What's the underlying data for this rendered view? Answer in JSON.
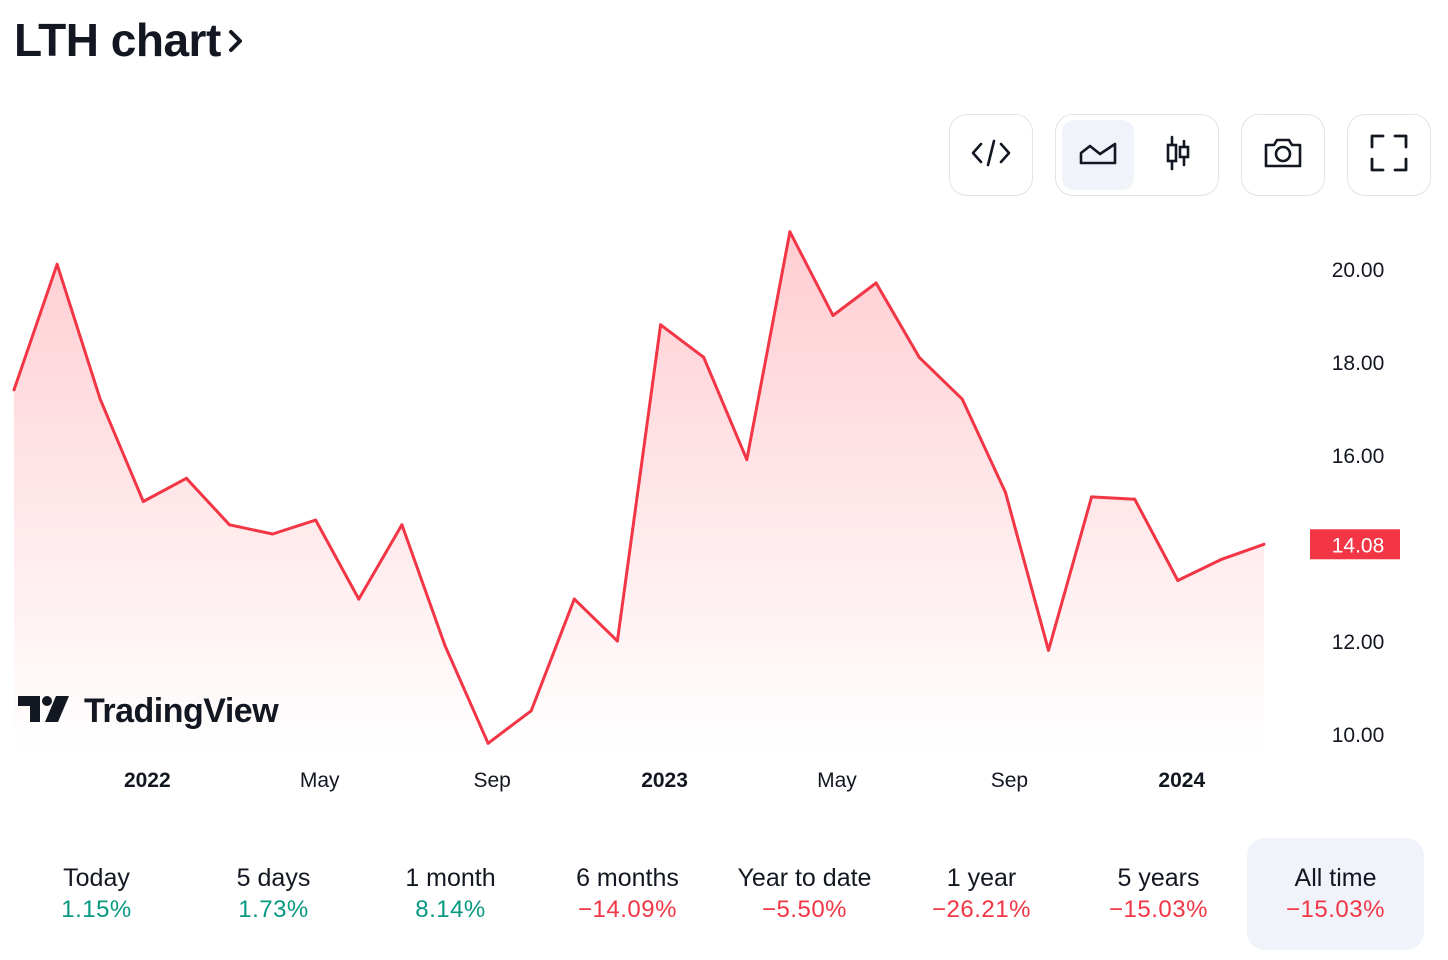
{
  "header": {
    "title": "LTH chart"
  },
  "toolbar": {
    "buttons": [
      {
        "name": "embed",
        "icon": "code-icon"
      },
      {
        "name": "area-style",
        "icon": "area-chart-icon",
        "active": true
      },
      {
        "name": "candle-style",
        "icon": "candlestick-icon"
      },
      {
        "name": "snapshot",
        "icon": "camera-icon"
      },
      {
        "name": "fullscreen",
        "icon": "fullscreen-icon"
      }
    ]
  },
  "brand": {
    "name": "TradingView"
  },
  "colors": {
    "line": "#f23645",
    "fill_top": "#ffcdd2",
    "fill_bottom": "#ffffff",
    "positive": "#089981",
    "negative": "#f23645"
  },
  "chart_data": {
    "type": "area",
    "series": [
      {
        "values": [
          17.4,
          20.1,
          17.2,
          15.0,
          15.5,
          14.5,
          14.3,
          14.6,
          12.9,
          14.5,
          11.9,
          9.8,
          10.5,
          12.9,
          12.0,
          18.8,
          18.1,
          15.9,
          20.8,
          19.0,
          19.7,
          18.1,
          17.2,
          15.2,
          11.8,
          15.1,
          15.05,
          13.3,
          13.75,
          14.08
        ]
      }
    ],
    "x_ticks": [
      {
        "label": "2022",
        "index": 3,
        "bold": true
      },
      {
        "label": "May",
        "index": 7,
        "bold": false
      },
      {
        "label": "Sep",
        "index": 11,
        "bold": false
      },
      {
        "label": "2023",
        "index": 15,
        "bold": true
      },
      {
        "label": "May",
        "index": 19,
        "bold": false
      },
      {
        "label": "Sep",
        "index": 23,
        "bold": false
      },
      {
        "label": "2024",
        "index": 27,
        "bold": true
      }
    ],
    "y_ticks": [
      "20.00",
      "18.00",
      "16.00",
      "14.08",
      "12.00",
      "10.00"
    ],
    "ylim": [
      9.0,
      21.2
    ],
    "last_price": "14.08",
    "grid": false
  },
  "periods": [
    {
      "label": "Today",
      "value": "1.15%",
      "sign": "pos"
    },
    {
      "label": "5 days",
      "value": "1.73%",
      "sign": "pos"
    },
    {
      "label": "1 month",
      "value": "8.14%",
      "sign": "pos"
    },
    {
      "label": "6 months",
      "value": "−14.09%",
      "sign": "neg"
    },
    {
      "label": "Year to date",
      "value": "−5.50%",
      "sign": "neg"
    },
    {
      "label": "1 year",
      "value": "−26.21%",
      "sign": "neg"
    },
    {
      "label": "5 years",
      "value": "−15.03%",
      "sign": "neg"
    },
    {
      "label": "All time",
      "value": "−15.03%",
      "sign": "neg",
      "active": true
    }
  ]
}
